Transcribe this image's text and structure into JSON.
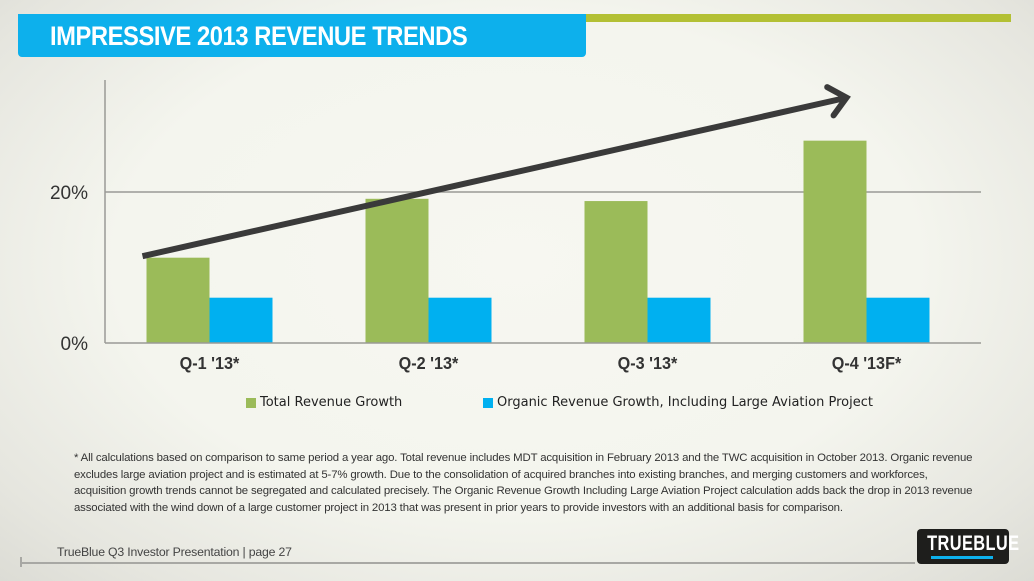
{
  "header": {
    "title": "IMPRESSIVE 2013 REVENUE TRENDS",
    "title_bg_color": "#0db0ec",
    "accent_color": "#b3c034"
  },
  "chart_data": {
    "type": "bar",
    "title": "",
    "xlabel": "",
    "ylabel": "",
    "categories": [
      "Q-1 '13*",
      "Q-2 '13*",
      "Q-3 '13*",
      "Q-4 '13F*"
    ],
    "series": [
      {
        "name": "Total Revenue Growth",
        "color": "#9bbb59",
        "values": [
          11.3,
          19.1,
          18.8,
          26.8
        ]
      },
      {
        "name": "Organic Revenue Growth, Including Large Aviation Project",
        "color": "#00b0f0",
        "values": [
          6,
          6,
          6,
          6
        ]
      }
    ],
    "yticks": [
      {
        "value": 0,
        "label": "0%"
      },
      {
        "value": 20,
        "label": "20%"
      }
    ],
    "ylim": [
      0,
      35
    ],
    "grid": true,
    "legend": "bottom",
    "annotations": [
      {
        "type": "trend-arrow",
        "from_category": "Q-1 '13*",
        "from_value": 11.5,
        "to_category": "Q-4 '13F*",
        "to_value": 32.5,
        "color": "#3a3a3a"
      }
    ]
  },
  "footnote": "* All calculations based on comparison to same period a year ago. Total revenue includes MDT acquisition in February 2013 and the TWC acquisition in October 2013. Organic revenue excludes large aviation project and is estimated at 5-7% growth. Due to the consolidation of acquired branches into existing branches, and merging  customers and workforces, acquisition growth trends cannot be segregated and  calculated precisely. The Organic Revenue Growth Including Large Aviation Project calculation adds back the drop in 2013 revenue associated with the wind down of a large customer project in 2013 that was present in prior years to provide investors with an additional basis for comparison.",
  "footer": {
    "text": "TrueBlue Q3 Investor Presentation | page 27",
    "logo_text": "TRUEBLUE"
  }
}
